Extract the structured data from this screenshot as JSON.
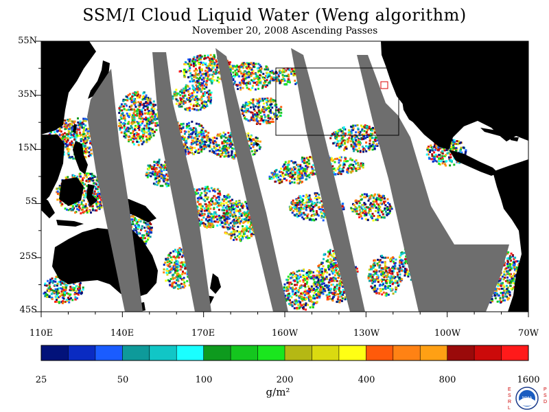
{
  "title": "SSM/I Cloud Liquid Water (Weng algorithm)",
  "subtitle": "November 20, 2008  Ascending Passes",
  "lat_labels": [
    "55N",
    "35N",
    "15N",
    "5S",
    "25S",
    "45S"
  ],
  "lon_labels": [
    "110E",
    "140E",
    "170E",
    "160W",
    "130W",
    "100W",
    "70W"
  ],
  "colorbar": {
    "tick_labels": [
      "25",
      "50",
      "100",
      "200",
      "400",
      "800",
      "1600"
    ],
    "units": "g/m²",
    "colors": [
      "#02127a",
      "#0a2bc2",
      "#1a5cff",
      "#0e9a9a",
      "#11c6c6",
      "#1affff",
      "#0e9a1e",
      "#14c61e",
      "#1ae61e",
      "#b5b814",
      "#dada10",
      "#ffff14",
      "#ff5a0a",
      "#ff8214",
      "#ffa014",
      "#9a0a0a",
      "#cc0a0a",
      "#ff1a1a"
    ]
  },
  "map": {
    "land_color": "#000000",
    "missing_color": "#6e6e6e",
    "ocean_color": "#ffffff",
    "extent": {
      "lon": [
        110,
        290
      ],
      "lat": [
        -45,
        55
      ]
    }
  },
  "logo": {
    "left_letters": "ESRL",
    "right_letters": "PSD",
    "center_text": "NOAA"
  }
}
